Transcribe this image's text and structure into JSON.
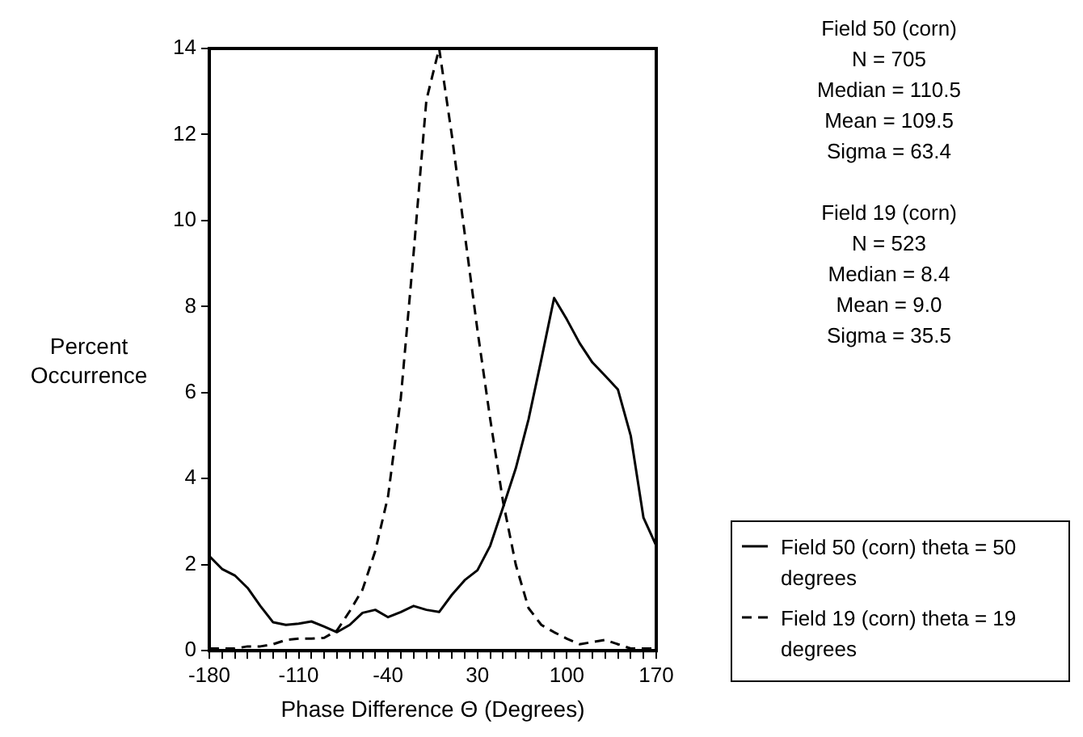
{
  "chart_data": {
    "type": "line",
    "xlabel": "Phase Difference Θ (Degrees)",
    "ylabel": "Percent Occurrence",
    "x": [
      -180,
      -170,
      -160,
      -150,
      -140,
      -130,
      -120,
      -110,
      -100,
      -90,
      -80,
      -70,
      -60,
      -50,
      -40,
      -30,
      -20,
      -10,
      0,
      10,
      20,
      30,
      40,
      50,
      60,
      70,
      80,
      90,
      100,
      110,
      120,
      130,
      140,
      150,
      160,
      170
    ],
    "series": [
      {
        "name": "Field 50 (corn) theta = 50 degrees",
        "color": "#000000",
        "line_style": "solid",
        "values": [
          2.2,
          1.9,
          1.75,
          1.46,
          1.04,
          0.66,
          0.6,
          0.63,
          0.68,
          0.56,
          0.43,
          0.6,
          0.88,
          0.95,
          0.78,
          0.9,
          1.04,
          0.95,
          0.9,
          1.3,
          1.64,
          1.87,
          2.44,
          3.33,
          4.24,
          5.38,
          6.77,
          8.2,
          7.7,
          7.15,
          6.7,
          6.39,
          6.07,
          5.0,
          3.09,
          2.44
        ]
      },
      {
        "name": "Field 19 (corn) theta = 19 degrees",
        "color": "#000000",
        "line_style": "dashed",
        "values": [
          0.05,
          0.05,
          0.05,
          0.1,
          0.1,
          0.15,
          0.25,
          0.28,
          0.28,
          0.3,
          0.47,
          0.92,
          1.42,
          2.32,
          3.59,
          5.88,
          9.24,
          12.8,
          14.0,
          11.97,
          9.7,
          7.45,
          5.38,
          3.47,
          2.0,
          0.99,
          0.6,
          0.43,
          0.28,
          0.15,
          0.2,
          0.25,
          0.15,
          0.05,
          0.05,
          0.05
        ]
      }
    ],
    "xlim": [
      -180,
      170
    ],
    "xticks": [
      -180,
      {
        "value": -170,
        "label": null
      },
      {
        "value": -160,
        "label": null
      },
      {
        "value": -150,
        "label": null
      },
      {
        "value": -140,
        "label": null
      },
      {
        "value": -130,
        "label": null
      },
      {
        "value": -120,
        "label": null
      },
      -110,
      {
        "value": -100,
        "label": null
      },
      {
        "value": -90,
        "label": null
      },
      {
        "value": -80,
        "label": null
      },
      {
        "value": -70,
        "label": null
      },
      {
        "value": -60,
        "label": null
      },
      {
        "value": -50,
        "label": null
      },
      -40,
      {
        "value": -30,
        "label": null
      },
      {
        "value": -20,
        "label": null
      },
      {
        "value": -10,
        "label": null
      },
      {
        "value": 0,
        "label": null
      },
      {
        "value": 10,
        "label": null
      },
      {
        "value": 20,
        "label": null
      },
      30,
      {
        "value": 40,
        "label": null
      },
      {
        "value": 50,
        "label": null
      },
      {
        "value": 60,
        "label": null
      },
      {
        "value": 70,
        "label": null
      },
      {
        "value": 80,
        "label": null
      },
      {
        "value": 90,
        "label": null
      },
      100,
      {
        "value": 110,
        "label": null
      },
      {
        "value": 120,
        "label": null
      },
      {
        "value": 130,
        "label": null
      },
      {
        "value": 140,
        "label": null
      },
      {
        "value": 150,
        "label": null
      },
      {
        "value": 160,
        "label": null
      },
      170
    ],
    "ylim": [
      0,
      14
    ],
    "yticks": [
      0,
      2,
      4,
      6,
      8,
      10,
      12,
      14
    ],
    "marker": "none",
    "legend": "bottom right",
    "annotations": [
      "Field 50 (corn)\nN = 705\nMedian = 110.5\nMean = 109.5\nSigma = 63.4",
      "Field 19 (corn)\nN = 523\nMedian = 8.4\nMean = 9.0\nSigma = 35.5"
    ]
  }
}
